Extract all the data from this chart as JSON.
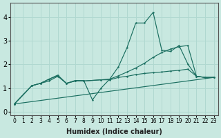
{
  "xlabel": "Humidex (Indice chaleur)",
  "bg_color": "#c8e8e0",
  "grid_color": "#b0d8d0",
  "line_color": "#1a6e60",
  "xlim": [
    -0.5,
    23.5
  ],
  "ylim": [
    -0.15,
    4.6
  ],
  "xticks": [
    0,
    1,
    2,
    3,
    4,
    5,
    6,
    7,
    8,
    9,
    10,
    11,
    12,
    13,
    14,
    15,
    16,
    17,
    18,
    19,
    20,
    21,
    22,
    23
  ],
  "yticks": [
    0,
    1,
    2,
    3,
    4
  ],
  "line_trend_x": [
    0,
    23
  ],
  "line_trend_y": [
    0.33,
    1.45
  ],
  "line_smooth_x": [
    0,
    2,
    3,
    4,
    5,
    6,
    7,
    8,
    10,
    11,
    12,
    13,
    14,
    15,
    16,
    17,
    18,
    19,
    20,
    21,
    22,
    23
  ],
  "line_smooth_y": [
    0.33,
    1.1,
    1.2,
    1.3,
    1.5,
    1.2,
    1.3,
    1.3,
    1.35,
    1.35,
    1.45,
    1.5,
    1.57,
    1.62,
    1.65,
    1.68,
    1.72,
    1.75,
    1.8,
    1.5,
    1.45,
    1.45
  ],
  "line_mid_x": [
    0,
    2,
    3,
    4,
    5,
    6,
    7,
    8,
    10,
    11,
    12,
    13,
    14,
    15,
    16,
    17,
    18,
    19,
    20,
    21,
    22,
    23
  ],
  "line_mid_y": [
    0.33,
    1.1,
    1.2,
    1.38,
    1.52,
    1.2,
    1.3,
    1.3,
    1.35,
    1.38,
    1.52,
    1.68,
    1.85,
    2.05,
    2.3,
    2.5,
    2.65,
    2.75,
    2.8,
    1.5,
    1.45,
    1.45
  ],
  "line_volatile_x": [
    0,
    2,
    3,
    4,
    5,
    6,
    7,
    8,
    9,
    10,
    11,
    12,
    13,
    14,
    15,
    16,
    17,
    18,
    19,
    20,
    21,
    22,
    23
  ],
  "line_volatile_y": [
    0.33,
    1.1,
    1.2,
    1.38,
    1.55,
    1.2,
    1.32,
    1.32,
    0.5,
    1.0,
    1.38,
    1.9,
    2.72,
    3.75,
    3.75,
    4.2,
    2.6,
    2.55,
    2.8,
    2.02,
    1.5,
    1.45,
    1.45
  ]
}
